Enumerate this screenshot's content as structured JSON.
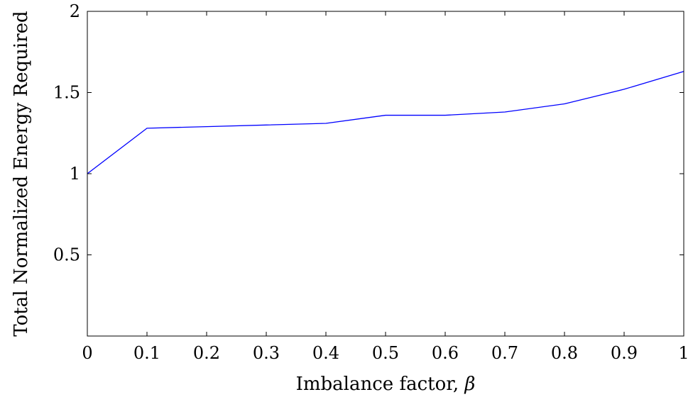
{
  "chart_data": {
    "type": "line",
    "title": "",
    "xlabel": "Imbalance factor, ",
    "xlabel_symbol": "β",
    "ylabel": "Total Normalized Energy Required",
    "xlim": [
      0,
      1
    ],
    "ylim": [
      0,
      2
    ],
    "grid": false,
    "x_ticks": [
      "0",
      "0.1",
      "0.2",
      "0.3",
      "0.4",
      "0.5",
      "0.6",
      "0.7",
      "0.8",
      "0.9",
      "1"
    ],
    "y_ticks": [
      "0.5",
      "1",
      "1.5",
      "2"
    ],
    "series": [
      {
        "color": "#0000ff",
        "x": [
          0,
          0.1,
          0.2,
          0.3,
          0.4,
          0.5,
          0.6,
          0.7,
          0.8,
          0.9,
          1
        ],
        "y": [
          1.0,
          1.28,
          1.29,
          1.3,
          1.31,
          1.36,
          1.36,
          1.38,
          1.43,
          1.52,
          1.63
        ]
      }
    ]
  }
}
